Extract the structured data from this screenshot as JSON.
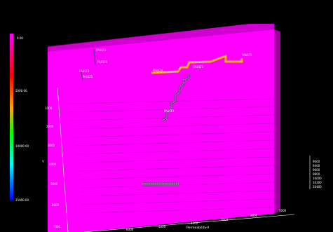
{
  "colorbar": {
    "labels": [
      "0.00",
      "5000.00",
      "10000.00",
      "15000.00"
    ],
    "colors": [
      "#ff00ff",
      "#ff0000",
      "#ffff00",
      "#00ff00",
      "#00ffff",
      "#0000ff"
    ]
  },
  "faults": [
    {
      "label": "FAULT5",
      "color": "#ffaa00"
    },
    {
      "label": "FAULT1",
      "color": "#6a3a8a"
    },
    {
      "label": "FAULT4",
      "color": "#ffffff"
    },
    {
      "label": "FAULT2",
      "color": "#ffffff"
    },
    {
      "label": "FAULT3",
      "color": "#ffffff"
    },
    {
      "label": "FAULT6",
      "color": "#ffffff"
    },
    {
      "label": "FAULT3",
      "color": "#ffffff"
    },
    {
      "label": "FAULT5",
      "color": "#ffffff"
    }
  ],
  "axes": {
    "left_ticks": [
      "1000",
      "2000",
      "3000",
      "4000",
      "5000",
      "6000",
      "7000"
    ],
    "left_title": "Y",
    "bottom_ticks": [
      "6000",
      "5000",
      "4000",
      "3000",
      "2000",
      "1000"
    ],
    "bottom_title": "Permeability-X",
    "right_ticks": [
      "9000",
      "9400",
      "9600",
      "9800",
      "10000",
      "10200",
      "10400"
    ]
  },
  "colors": {
    "surface": "#ff00ff",
    "surface_top": "#e800e8",
    "background": "#000000"
  }
}
